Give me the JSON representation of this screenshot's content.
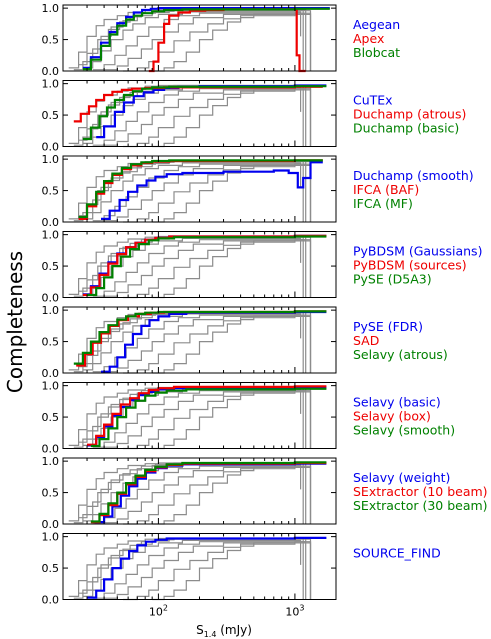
{
  "chart_data": {
    "type": "line",
    "step": true,
    "x_scale": "log",
    "xlim": [
      20,
      2000
    ],
    "ylim": [
      0,
      1.05
    ],
    "ylabel": "Completeness",
    "xlabel_main": "S",
    "xlabel_sub": "1.4",
    "xlabel_unit": " (mJy)",
    "x_tick_base": "10",
    "x_ticks": [
      {
        "exp": "2",
        "value": 100
      },
      {
        "exp": "3",
        "value": 1000
      }
    ],
    "y_ticks": [
      "0.0",
      "0.5",
      "1.0"
    ],
    "colors": {
      "blue": "#0000ee",
      "red": "#ee0000",
      "green": "#008000",
      "gray": "#8c8c8c"
    },
    "grey_curves": [
      {
        "x": [
          22,
          26,
          30,
          35,
          40,
          50,
          60,
          80,
          100,
          1000,
          1200
        ],
        "y": [
          0.05,
          0.3,
          0.55,
          0.72,
          0.82,
          0.88,
          0.93,
          0.96,
          0.97,
          0.97,
          0.0
        ]
      },
      {
        "x": [
          24,
          28,
          33,
          38,
          45,
          55,
          70,
          90,
          120,
          1100,
          1300
        ],
        "y": [
          0.02,
          0.15,
          0.35,
          0.55,
          0.7,
          0.8,
          0.88,
          0.93,
          0.96,
          0.96,
          0.0
        ]
      },
      {
        "x": [
          28,
          33,
          38,
          45,
          55,
          65,
          80,
          100,
          150,
          1000,
          1100
        ],
        "y": [
          0.05,
          0.15,
          0.32,
          0.5,
          0.65,
          0.75,
          0.85,
          0.9,
          0.94,
          0.94,
          0.55
        ]
      },
      {
        "x": [
          33,
          40,
          48,
          58,
          70,
          85,
          110,
          140,
          200,
          1200
        ],
        "y": [
          0.02,
          0.1,
          0.25,
          0.4,
          0.55,
          0.7,
          0.82,
          0.88,
          0.92,
          0.92
        ]
      },
      {
        "x": [
          40,
          50,
          60,
          75,
          90,
          110,
          140,
          180,
          300,
          1000,
          1300
        ],
        "y": [
          0.02,
          0.08,
          0.2,
          0.35,
          0.5,
          0.62,
          0.75,
          0.85,
          0.9,
          0.92,
          0.0
        ]
      },
      {
        "x": [
          55,
          70,
          85,
          100,
          130,
          170,
          230,
          300,
          400,
          1000,
          1300
        ],
        "y": [
          0.0,
          0.05,
          0.15,
          0.3,
          0.48,
          0.62,
          0.75,
          0.83,
          0.88,
          0.9,
          0.0
        ]
      },
      {
        "x": [
          90,
          110,
          130,
          160,
          200,
          250,
          320,
          400,
          500,
          1000
        ],
        "y": [
          0.0,
          0.05,
          0.15,
          0.3,
          0.5,
          0.65,
          0.78,
          0.85,
          0.9,
          0.9
        ]
      },
      {
        "x": [
          26,
          30,
          36,
          43,
          52,
          62,
          75,
          95,
          130,
          1000,
          1150
        ],
        "y": [
          0.1,
          0.28,
          0.5,
          0.66,
          0.78,
          0.86,
          0.92,
          0.95,
          0.97,
          0.97,
          0.0
        ]
      }
    ],
    "panels": [
      {
        "series": [
          {
            "name": "Aegean",
            "color": "blue",
            "x": [
              28,
              32,
              38,
              44,
              50,
              58,
              66,
              76,
              88,
              100,
              1000,
              1800
            ],
            "y": [
              0.05,
              0.22,
              0.45,
              0.62,
              0.76,
              0.86,
              0.93,
              0.97,
              0.99,
              1.0,
              1.0,
              1.0
            ]
          },
          {
            "name": "Apex",
            "color": "red",
            "x": [
              85,
              92,
              100,
              110,
              120,
              140,
              170,
              220,
              300,
              1000,
              1030,
              1080,
              1200
            ],
            "y": [
              0.0,
              0.15,
              0.45,
              0.75,
              0.88,
              0.93,
              0.96,
              0.97,
              0.98,
              0.98,
              0.25,
              0.0,
              0.0
            ]
          },
          {
            "name": "Blobcat",
            "color": "green",
            "x": [
              28,
              32,
              38,
              44,
              50,
              58,
              66,
              76,
              90,
              110,
              150,
              1000,
              1800
            ],
            "y": [
              0.03,
              0.18,
              0.4,
              0.58,
              0.72,
              0.82,
              0.88,
              0.92,
              0.95,
              0.97,
              0.98,
              0.99,
              0.99
            ]
          }
        ]
      },
      {
        "series": [
          {
            "name": "CuTEx",
            "color": "blue",
            "x": [
              35,
              40,
              48,
              56,
              66,
              78,
              92,
              110,
              140,
              200,
              1000,
              1700
            ],
            "y": [
              0.15,
              0.32,
              0.55,
              0.7,
              0.8,
              0.86,
              0.9,
              0.93,
              0.95,
              0.96,
              0.97,
              0.97
            ]
          },
          {
            "name": "Duchamp (atrous)",
            "color": "red",
            "x": [
              24,
              27,
              31,
              35,
              40,
              46,
              54,
              64,
              80,
              110,
              1000,
              1600
            ],
            "y": [
              0.4,
              0.52,
              0.64,
              0.74,
              0.82,
              0.87,
              0.9,
              0.92,
              0.93,
              0.94,
              0.95,
              0.95
            ]
          },
          {
            "name": "Duchamp (basic)",
            "color": "green",
            "x": [
              28,
              32,
              37,
              42,
              48,
              56,
              65,
              76,
              90,
              120,
              1000,
              1700
            ],
            "y": [
              0.12,
              0.3,
              0.48,
              0.62,
              0.74,
              0.82,
              0.88,
              0.92,
              0.94,
              0.95,
              0.96,
              0.96
            ]
          }
        ]
      },
      {
        "series": [
          {
            "name": "Duchamp (smooth)",
            "color": "blue",
            "x": [
              38,
              44,
              52,
              60,
              70,
              82,
              95,
              115,
              150,
              300,
              700,
              900,
              1050,
              1150,
              1300,
              1600
            ],
            "y": [
              0.05,
              0.18,
              0.35,
              0.48,
              0.58,
              0.66,
              0.72,
              0.76,
              0.78,
              0.8,
              0.82,
              0.78,
              0.55,
              0.7,
              0.95,
              0.95
            ]
          },
          {
            "name": "IFCA (BAF)",
            "color": "red",
            "x": [
              26,
              30,
              35,
              40,
              46,
              54,
              63,
              75,
              90,
              120,
              1000,
              1600
            ],
            "y": [
              0.05,
              0.25,
              0.45,
              0.62,
              0.75,
              0.84,
              0.9,
              0.94,
              0.96,
              0.97,
              0.98,
              0.98
            ]
          },
          {
            "name": "IFCA (MF)",
            "color": "green",
            "x": [
              26,
              30,
              35,
              40,
              46,
              54,
              63,
              75,
              90,
              120,
              1000,
              1600
            ],
            "y": [
              0.08,
              0.28,
              0.48,
              0.65,
              0.77,
              0.86,
              0.92,
              0.95,
              0.97,
              0.98,
              0.98,
              0.98
            ]
          }
        ]
      },
      {
        "series": [
          {
            "name": "PyBDSM (Gaussians)",
            "color": "blue",
            "x": [
              28,
              32,
              37,
              43,
              50,
              58,
              68,
              80,
              95,
              120,
              1000,
              1700
            ],
            "y": [
              0.05,
              0.18,
              0.38,
              0.56,
              0.7,
              0.8,
              0.87,
              0.92,
              0.95,
              0.97,
              0.98,
              0.98
            ]
          },
          {
            "name": "PyBDSM (sources)",
            "color": "red",
            "x": [
              28,
              32,
              37,
              43,
              50,
              58,
              68,
              80,
              95,
              120,
              1000,
              1700
            ],
            "y": [
              0.04,
              0.16,
              0.36,
              0.54,
              0.69,
              0.8,
              0.87,
              0.92,
              0.95,
              0.97,
              0.98,
              0.98
            ]
          },
          {
            "name": "PySE (D5A3)",
            "color": "green",
            "x": [
              30,
              35,
              40,
              46,
              53,
              62,
              72,
              85,
              100,
              130,
              1000,
              1700
            ],
            "y": [
              0.04,
              0.15,
              0.32,
              0.5,
              0.65,
              0.77,
              0.85,
              0.91,
              0.94,
              0.96,
              0.97,
              0.97
            ]
          }
        ]
      },
      {
        "series": [
          {
            "name": "PySE (FDR)",
            "color": "blue",
            "x": [
              38,
              44,
              50,
              57,
              65,
              75,
              86,
              100,
              120,
              160,
              1000,
              1700
            ],
            "y": [
              0.02,
              0.1,
              0.25,
              0.45,
              0.62,
              0.75,
              0.84,
              0.9,
              0.94,
              0.96,
              0.97,
              0.97
            ]
          },
          {
            "name": "SAD",
            "color": "red",
            "x": [
              25,
              29,
              33,
              38,
              44,
              51,
              60,
              72,
              88,
              110,
              1000,
              1700
            ],
            "y": [
              0.12,
              0.3,
              0.48,
              0.63,
              0.75,
              0.84,
              0.9,
              0.94,
              0.96,
              0.97,
              0.98,
              0.98
            ]
          },
          {
            "name": "Selavy (atrous)",
            "color": "green",
            "x": [
              24,
              28,
              32,
              37,
              43,
              50,
              58,
              68,
              80,
              100,
              1000,
              1700
            ],
            "y": [
              0.15,
              0.32,
              0.5,
              0.65,
              0.76,
              0.85,
              0.9,
              0.94,
              0.96,
              0.97,
              0.98,
              0.98
            ]
          }
        ]
      },
      {
        "series": [
          {
            "name": "Selavy (basic)",
            "color": "blue",
            "x": [
              30,
              35,
              40,
              46,
              53,
              62,
              72,
              85,
              100,
              130,
              1000,
              1700
            ],
            "y": [
              0.05,
              0.18,
              0.35,
              0.52,
              0.66,
              0.77,
              0.85,
              0.9,
              0.94,
              0.96,
              0.97,
              0.97
            ]
          },
          {
            "name": "Selavy (box)",
            "color": "red",
            "x": [
              30,
              35,
              40,
              46,
              53,
              62,
              72,
              85,
              100,
              130,
              1000,
              1700
            ],
            "y": [
              0.06,
              0.2,
              0.38,
              0.55,
              0.7,
              0.8,
              0.88,
              0.93,
              0.96,
              0.98,
              0.99,
              0.99
            ]
          },
          {
            "name": "Selavy (smooth)",
            "color": "green",
            "x": [
              32,
              37,
              43,
              50,
              58,
              68,
              80,
              95,
              115,
              160,
              1000,
              1700
            ],
            "y": [
              0.04,
              0.15,
              0.32,
              0.5,
              0.65,
              0.76,
              0.84,
              0.89,
              0.92,
              0.94,
              0.95,
              0.95
            ]
          }
        ]
      },
      {
        "series": [
          {
            "name": "Selavy (weight)",
            "color": "blue",
            "x": [
              34,
              40,
              46,
              53,
              61,
              70,
              81,
              95,
              115,
              150,
              1000,
              1700
            ],
            "y": [
              0.03,
              0.12,
              0.28,
              0.45,
              0.6,
              0.72,
              0.82,
              0.89,
              0.93,
              0.95,
              0.96,
              0.96
            ]
          },
          {
            "name": "SExtractor (10 beam)",
            "color": "red",
            "x": [
              32,
              37,
              43,
              50,
              58,
              68,
              80,
              95,
              115,
              150,
              1000,
              1700
            ],
            "y": [
              0.03,
              0.14,
              0.3,
              0.48,
              0.63,
              0.75,
              0.84,
              0.9,
              0.94,
              0.96,
              0.97,
              0.97
            ]
          },
          {
            "name": "SExtractor (30 beam)",
            "color": "green",
            "x": [
              32,
              37,
              43,
              50,
              58,
              68,
              80,
              95,
              115,
              150,
              1000,
              1700
            ],
            "y": [
              0.04,
              0.16,
              0.33,
              0.5,
              0.65,
              0.77,
              0.86,
              0.91,
              0.95,
              0.97,
              0.98,
              0.98
            ]
          }
        ]
      },
      {
        "series": [
          {
            "name": "SOURCE_FIND",
            "color": "blue",
            "x": [
              30,
              35,
              40,
              46,
              53,
              61,
              70,
              81,
              95,
              115,
              1000,
              1700
            ],
            "y": [
              0.03,
              0.14,
              0.32,
              0.5,
              0.65,
              0.77,
              0.86,
              0.92,
              0.95,
              0.97,
              0.98,
              0.98
            ]
          }
        ]
      }
    ]
  }
}
